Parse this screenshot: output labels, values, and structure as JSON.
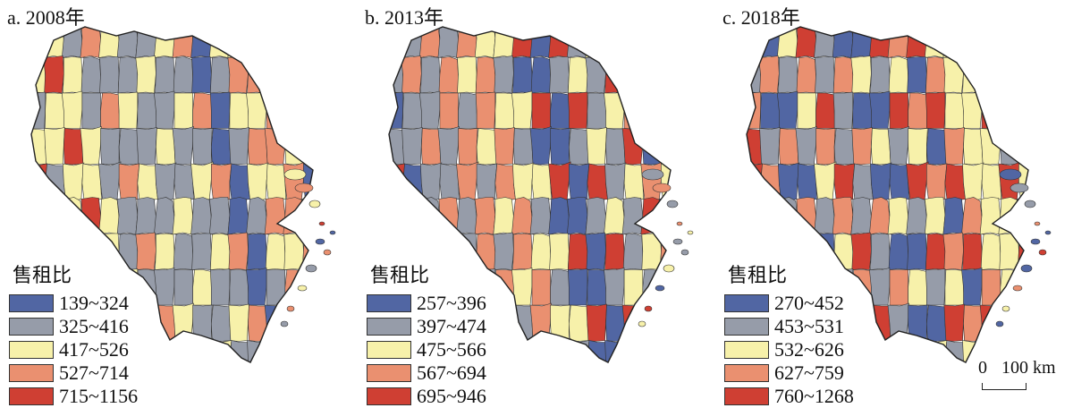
{
  "colors": {
    "c1": "#5166a3",
    "c2": "#969ca9",
    "c3": "#f7f1aa",
    "c4": "#ea9070",
    "c5": "#cf3f33",
    "boundary": "#222222"
  },
  "legend_title": "售租比",
  "panels": [
    {
      "title": "a. 2008年",
      "classes": [
        "139~324",
        "325~416",
        "417~526",
        "527~714",
        "715~1156"
      ],
      "pattern": [
        3,
        2,
        1,
        4,
        3,
        2,
        3,
        4,
        2,
        1,
        3,
        3,
        4,
        2,
        1,
        2,
        3,
        4,
        3,
        3,
        2,
        4,
        1,
        3,
        2,
        3,
        4,
        5,
        3,
        2,
        1,
        3,
        4,
        2,
        3,
        2,
        1,
        4,
        3,
        2,
        3,
        4,
        5,
        2,
        3,
        1,
        2,
        3,
        4,
        3
      ]
    },
    {
      "title": "b. 2013年",
      "classes": [
        "257~396",
        "397~474",
        "475~566",
        "567~694",
        "695~946"
      ],
      "pattern": [
        2,
        1,
        3,
        4,
        2,
        1,
        2,
        3,
        4,
        2,
        1,
        1,
        2,
        3,
        2,
        3,
        4,
        2,
        1,
        2,
        3,
        5,
        4,
        2,
        3,
        1,
        2,
        4,
        5,
        4,
        3,
        2,
        1,
        2,
        3,
        4,
        5,
        5,
        4,
        3,
        2,
        4,
        5,
        4,
        3,
        2,
        1,
        2,
        4,
        5
      ]
    },
    {
      "title": "c. 2018年",
      "classes": [
        "270~452",
        "453~531",
        "532~626",
        "627~759",
        "760~1268"
      ],
      "pattern": [
        1,
        2,
        3,
        2,
        1,
        3,
        2,
        4,
        3,
        1,
        2,
        3,
        5,
        4,
        3,
        1,
        2,
        3,
        4,
        5,
        1,
        3,
        4,
        2,
        1,
        2,
        3,
        4,
        5,
        3,
        1,
        2,
        4,
        3,
        2,
        4,
        5,
        4,
        3,
        2,
        3,
        4,
        5,
        4,
        3,
        2,
        4,
        3,
        5,
        4
      ]
    }
  ],
  "scale": {
    "zero": "0",
    "label": "100 km"
  }
}
